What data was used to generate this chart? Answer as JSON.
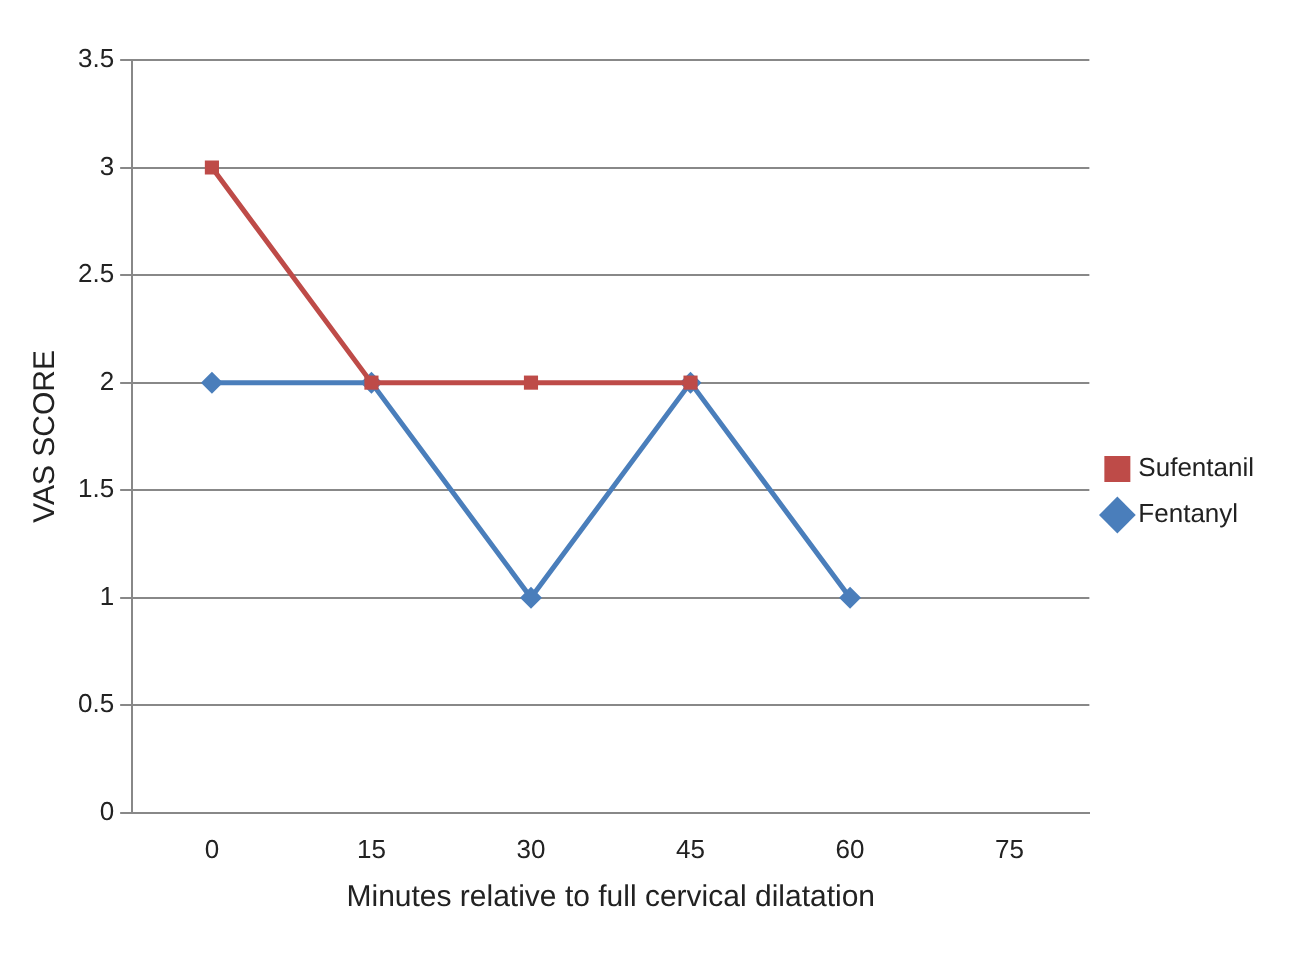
{
  "chart_data": {
    "type": "line",
    "xlabel": "Minutes relative to full cervical dilatation",
    "ylabel": "VAS SCORE",
    "categories": [
      "0",
      "15",
      "30",
      "45",
      "60",
      "75"
    ],
    "series": [
      {
        "name": "Fentanyl",
        "color": "#4a7ebb",
        "marker": "diamond",
        "values": [
          2,
          2,
          1,
          2,
          1,
          null
        ]
      },
      {
        "name": "Sufentanil",
        "color": "#be4b48",
        "marker": "square",
        "values": [
          3,
          2,
          2,
          2,
          null,
          null
        ]
      }
    ],
    "ylim": [
      0,
      3.5
    ],
    "yticks": [
      0,
      0.5,
      1,
      1.5,
      2,
      2.5,
      3,
      3.5
    ],
    "grid": "y",
    "legend": "right"
  }
}
